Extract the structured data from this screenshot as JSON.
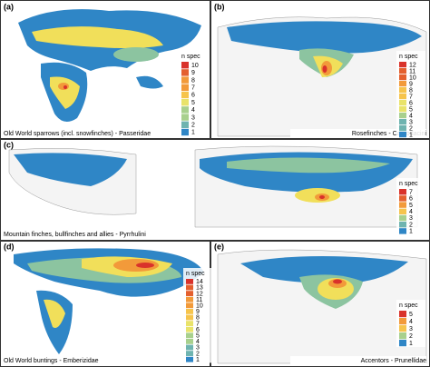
{
  "panels": [
    {
      "label": "(a)",
      "caption": "Old World sparrows (incl. snowfinches) - Passeridae",
      "legend": {
        "title": "n spec",
        "values": [
          10,
          9,
          8,
          7,
          6,
          5,
          4,
          3,
          2,
          1
        ]
      }
    },
    {
      "label": "(b)",
      "caption": "Rosefinches - Carpodacini",
      "legend": {
        "title": "n spec",
        "values": [
          12,
          11,
          10,
          9,
          8,
          7,
          6,
          5,
          4,
          3,
          2,
          1
        ]
      }
    },
    {
      "label": "(c)",
      "caption": "Mountain finches, bullfinches and allies - Pyrrhulini",
      "legend": {
        "title": "n spec",
        "values": [
          7,
          6,
          5,
          4,
          3,
          2,
          1
        ]
      }
    },
    {
      "label": "(d)",
      "caption": "Old World buntings - Emberizidae",
      "legend": {
        "title": "n spec",
        "values": [
          14,
          13,
          12,
          11,
          10,
          9,
          8,
          7,
          6,
          5,
          4,
          3,
          2,
          1
        ]
      }
    },
    {
      "label": "(e)",
      "caption": "Accentors - Prunellidae",
      "legend": {
        "title": "n spec",
        "values": [
          5,
          4,
          3,
          2,
          1
        ]
      }
    }
  ]
}
